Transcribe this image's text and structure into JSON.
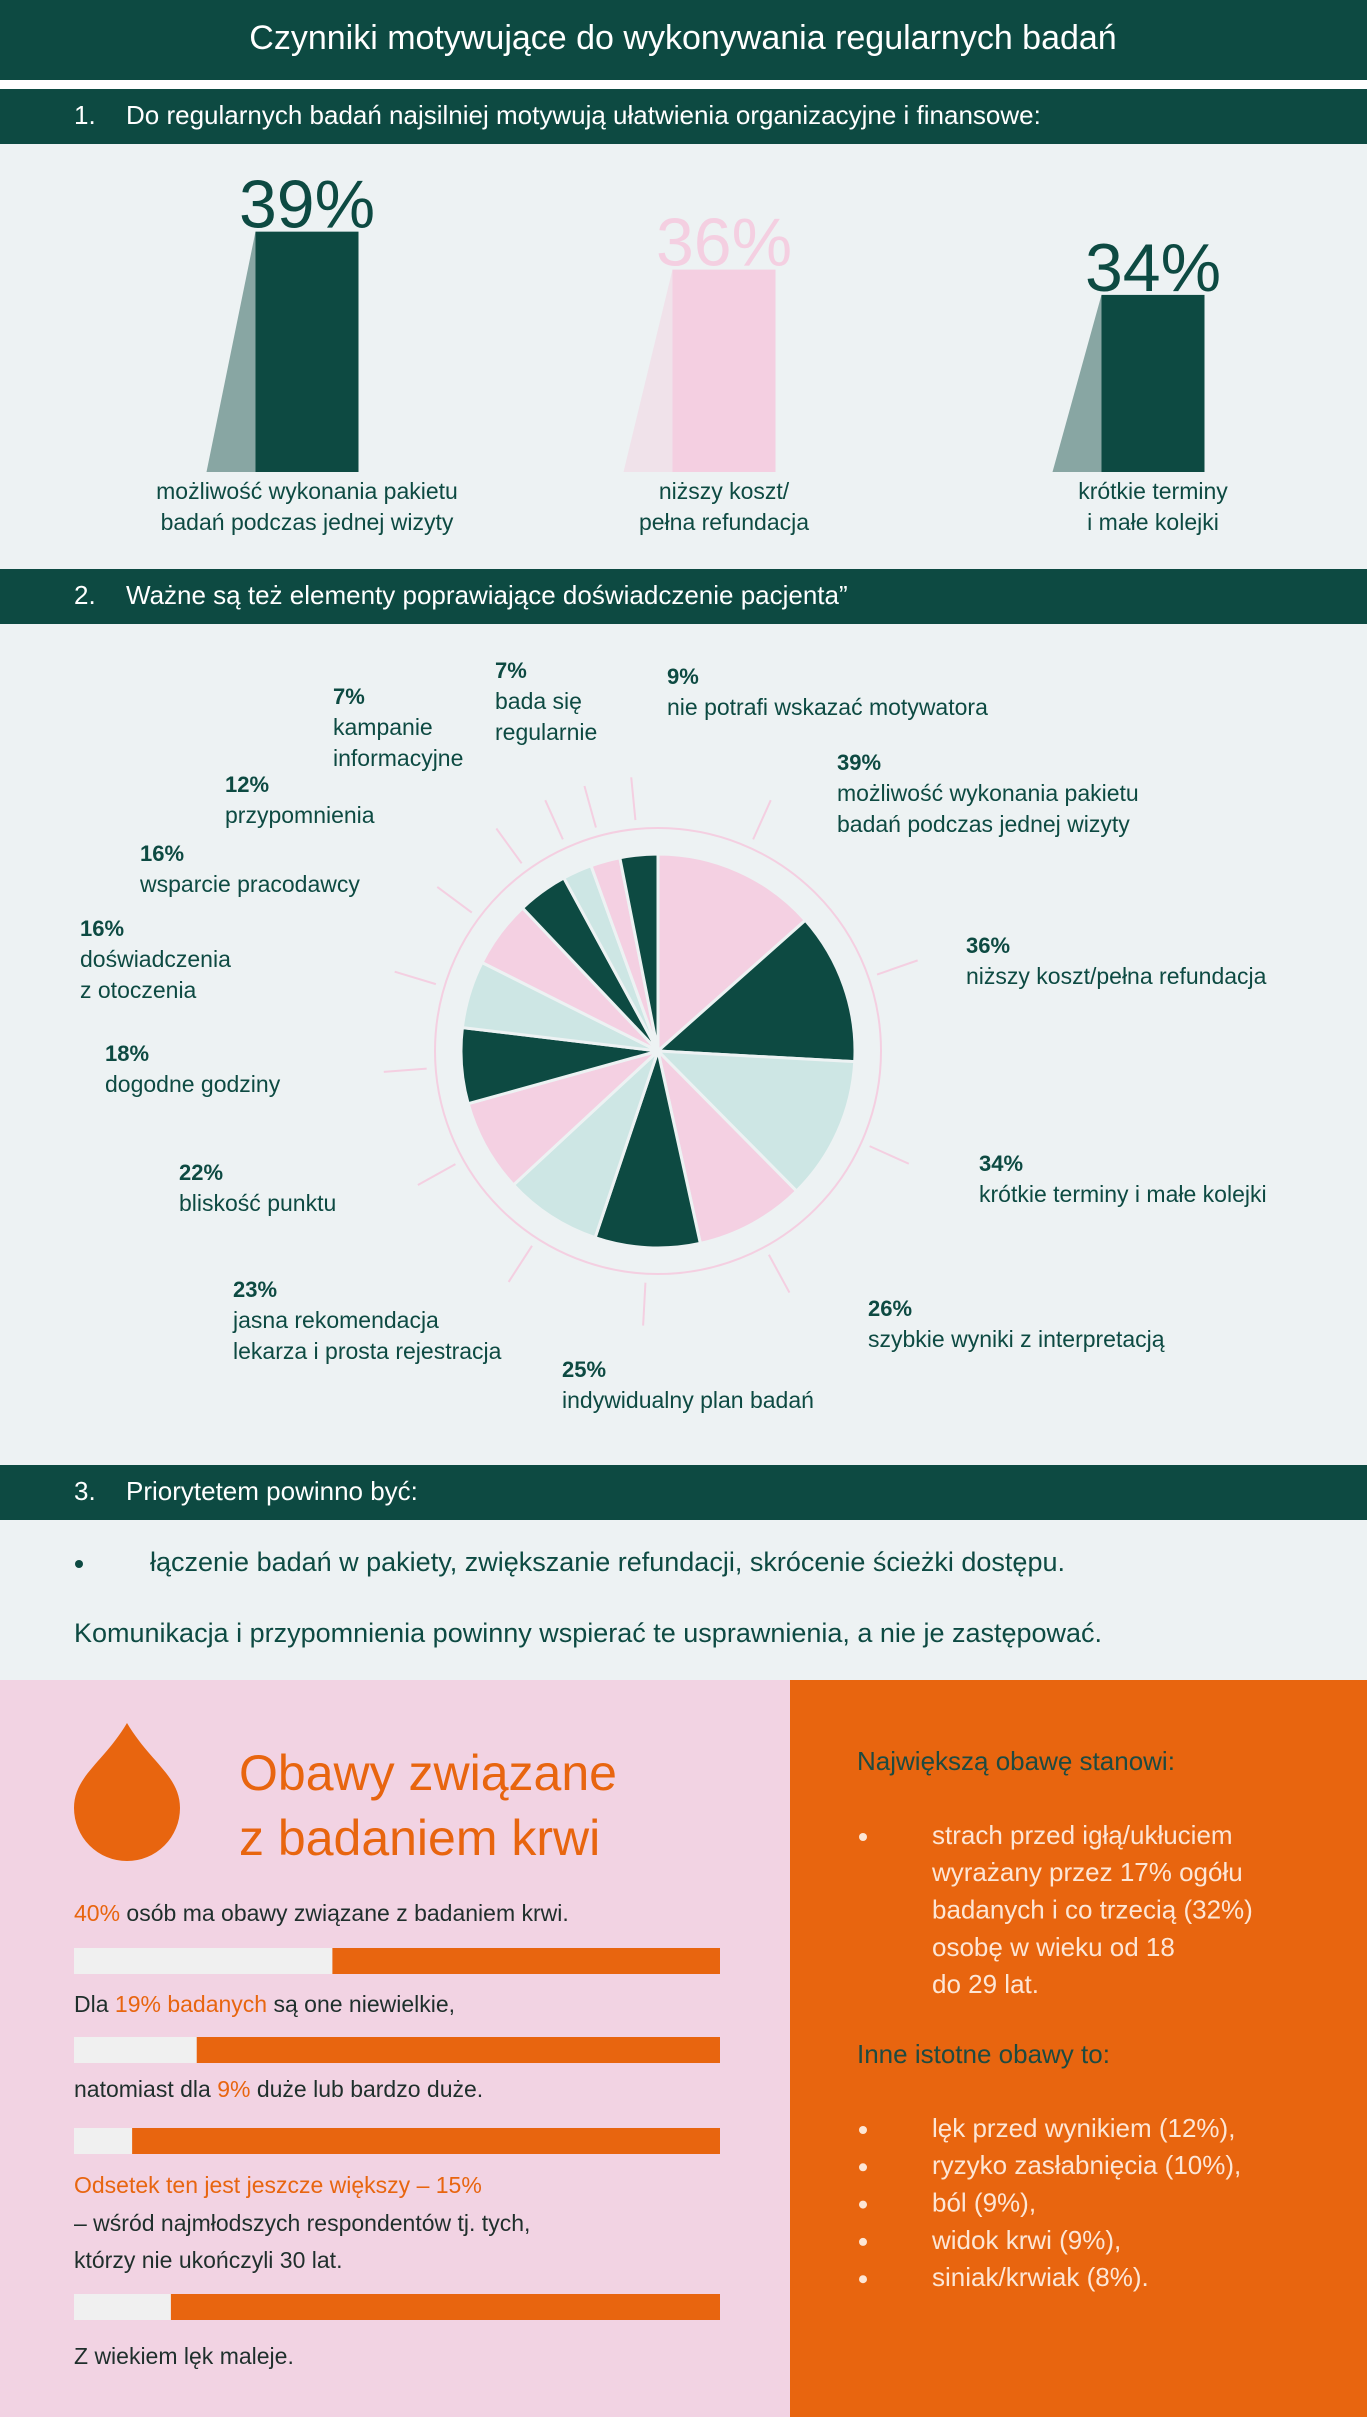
{
  "header": {
    "title": "Czynniki motywujące do wykonywania regularnych badań"
  },
  "sections": [
    {
      "number": "1.",
      "title": "Do regularnych badań najsilniej motywują ułatwienia organizacyjne i finansowe:"
    },
    {
      "number": "2.",
      "title": "Ważne są też elementy poprawiające doświadczenie pacjenta”"
    },
    {
      "number": "3.",
      "title": "Priorytetem powinno być:"
    }
  ],
  "chart_data": [
    {
      "type": "bar",
      "categories": [
        [
          "możliwość wykonania pakietu",
          "badań podczas jednej wizyty"
        ],
        [
          "niższy koszt/",
          "pełna refundacja"
        ],
        [
          "krótkie terminy",
          "i małe kolejki"
        ]
      ],
      "values": [
        39,
        36,
        34
      ],
      "value_labels": [
        "39%",
        "36%",
        "34%"
      ],
      "colors": [
        "#0d4a42",
        "#f4cfe1",
        "#0d4a42"
      ],
      "ylim": [
        20,
        40
      ]
    },
    {
      "type": "pie",
      "values": [
        39,
        36,
        34,
        26,
        25,
        23,
        22,
        18,
        16,
        16,
        12,
        7,
        7,
        9
      ],
      "value_labels": [
        "39%",
        "36%",
        "34%",
        "26%",
        "25%",
        "23%",
        "22%",
        "18%",
        "16%",
        "16%",
        "12%",
        "7%",
        "7%",
        "9%"
      ],
      "labels": [
        [
          "możliwość wykonania pakietu",
          "badań podczas jednej wizyty"
        ],
        [
          "niższy koszt/pełna refundacja"
        ],
        [
          "krótkie terminy i małe kolejki"
        ],
        [
          "szybkie wyniki z interpretacją"
        ],
        [
          "indywidualny plan badań"
        ],
        [
          "jasna rekomendacja",
          "lekarza i prosta rejestracja"
        ],
        [
          "bliskość punktu"
        ],
        [
          "dogodne godziny"
        ],
        [
          "doświadczenia",
          "z otoczenia"
        ],
        [
          "wsparcie pracodawcy"
        ],
        [
          "przypomnienia"
        ],
        [
          "kampanie",
          "informacyjne"
        ],
        [
          "bada się",
          "regularnie"
        ],
        [
          "nie potrafi wskazać motywatora"
        ]
      ],
      "colors": [
        "#f4d0e2",
        "#0d4a42",
        "#cde6e4"
      ]
    },
    {
      "type": "progress",
      "values": [
        40,
        19,
        9,
        15
      ],
      "xlim": [
        0,
        100
      ],
      "colors": [
        "#f0f0f0",
        "#e8650f"
      ]
    }
  ],
  "priorities": {
    "bullet": "łączenie badań w pakiety, zwiększanie refundacji, skrócenie ścieżki dostępu.",
    "note": "Komunikacja i przypomnienia powinny wspierać te usprawnienia, a nie je zastępować."
  },
  "blood": {
    "title": [
      "Obawy związane",
      "z badaniem krwi"
    ],
    "lines": [
      [
        {
          "text": "40%",
          "orange": true
        },
        {
          "text": " osób ma obawy związane z badaniem krwi.",
          "orange": false
        }
      ],
      [
        {
          "text": "Dla ",
          "orange": false
        },
        {
          "text": "19% badanych",
          "orange": true
        },
        {
          "text": " są one niewielkie,",
          "orange": false
        }
      ],
      [
        {
          "text": "natomiast dla ",
          "orange": false
        },
        {
          "text": "9%",
          "orange": true
        },
        {
          "text": " duże lub bardzo duże.",
          "orange": false
        }
      ],
      [
        {
          "text": "Odsetek ten jest jeszcze większy – 15%",
          "orange": true
        }
      ],
      [
        {
          "text": "– wśród najmłodszych respondentów tj. tych,",
          "orange": false
        }
      ],
      [
        {
          "text": "którzy nie ukończyli 30 lat.",
          "orange": false
        }
      ],
      [
        {
          "text": "Z wiekiem lęk maleje.",
          "orange": false
        }
      ]
    ]
  },
  "concerns": {
    "main_heading": "Największą obawę stanowi:",
    "main": [
      "strach przed igłą/ukłuciem",
      "wyrażany przez 17% ogółu",
      "badanych i co trzecią (32%)",
      "osobę w wieku od 18",
      "do 29 lat."
    ],
    "other_heading": "Inne istotne obawy to:",
    "other": [
      "lęk przed wynikiem (12%),",
      "ryzyko zasłabnięcia (10%),",
      "ból (9%),",
      "widok krwi (9%),",
      "siniak/krwiak (8%)."
    ]
  }
}
